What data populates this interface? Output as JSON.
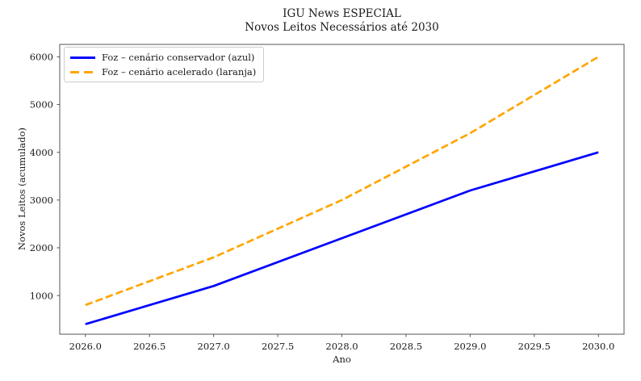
{
  "chart_data": {
    "type": "line",
    "title_lines": [
      "IGU News ESPECIAL",
      "Novos Leitos Necessários até 2030"
    ],
    "xlabel": "Ano",
    "ylabel": "Novos Leitos (acumulado)",
    "x": [
      2026,
      2027,
      2028,
      2029,
      2030
    ],
    "series": [
      {
        "name": "Foz – cenário conservador (azul)",
        "color": "#0000ff",
        "line_style": "solid",
        "values": [
          400,
          1200,
          2200,
          3200,
          4000
        ]
      },
      {
        "name": "Foz – cenário acelerado (laranja)",
        "color": "#ffa500",
        "line_style": "dashed",
        "values": [
          800,
          1800,
          3000,
          4400,
          6000
        ]
      }
    ],
    "xticks": {
      "values": [
        2026,
        2026.5,
        2027,
        2027.5,
        2028,
        2028.5,
        2029,
        2029.5,
        2030
      ],
      "labels": [
        "2026.0",
        "2026.5",
        "2027.0",
        "2027.5",
        "2028.0",
        "2028.5",
        "2029.0",
        "2029.5",
        "2030.0"
      ]
    },
    "yticks": {
      "values": [
        1000,
        2000,
        3000,
        4000,
        5000,
        6000
      ],
      "labels": [
        "1000",
        "2000",
        "3000",
        "4000",
        "5000",
        "6000"
      ]
    },
    "xlim": [
      2025.8,
      2030.2
    ],
    "ylim": [
      190,
      6260
    ],
    "grid": false,
    "legend_position": "upper left",
    "colors": {
      "axis": "#555555",
      "text": "#1a1a1a",
      "background": "#ffffff"
    }
  }
}
